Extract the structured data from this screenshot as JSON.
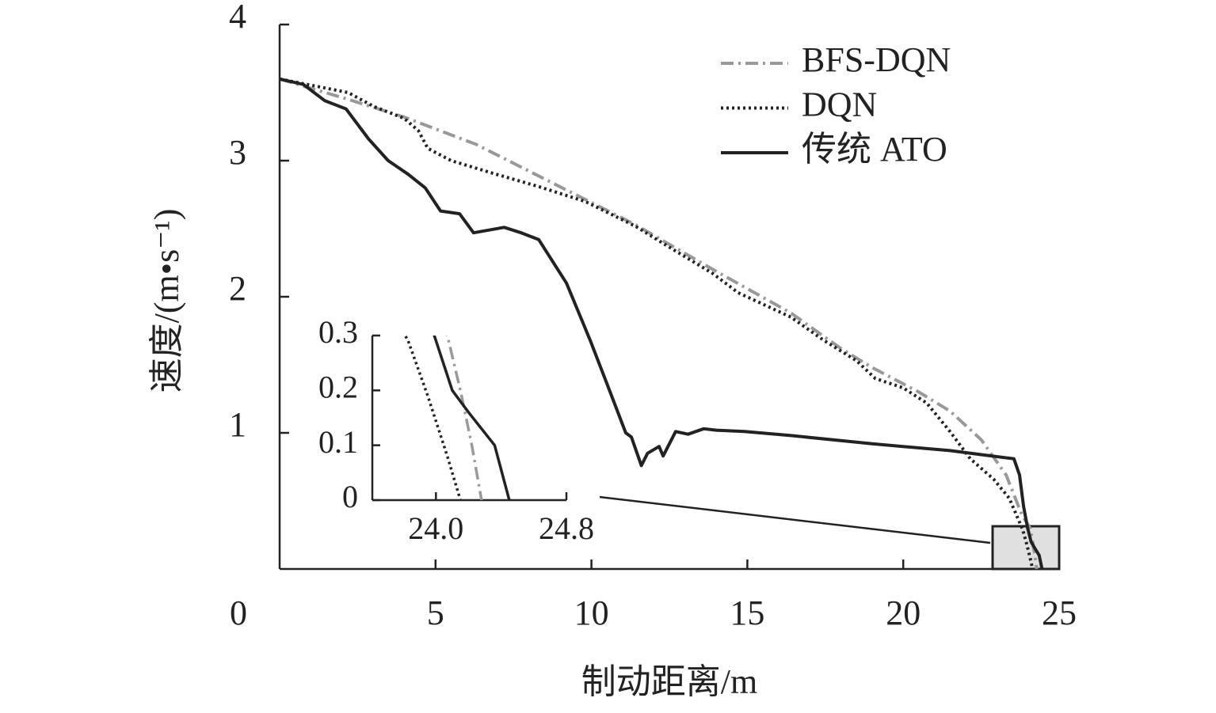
{
  "chart_data": {
    "type": "line",
    "x_label": "制动距离/m",
    "y_label": "速度/(m•s⁻¹)",
    "xlim": [
      0,
      25
    ],
    "xticks": [
      0,
      5,
      10,
      15,
      20,
      25
    ],
    "ylim": [
      0,
      4
    ],
    "yticks": [
      1,
      2,
      3,
      4
    ],
    "legend": "upper right",
    "series": [
      {
        "name": "BFS-DQN",
        "color": "#999999",
        "dash": "dashdot",
        "x": [
          0,
          2.2,
          4,
          6.3,
          8.8,
          11.4,
          13.9,
          16.4,
          18,
          19,
          20.5,
          21.5,
          22.5,
          23.3,
          23.8,
          24.07,
          24.15,
          24.22,
          24.28
        ],
        "values": [
          3.6,
          3.45,
          3.32,
          3.12,
          2.83,
          2.53,
          2.2,
          1.88,
          1.62,
          1.48,
          1.3,
          1.16,
          0.95,
          0.69,
          0.4,
          0.3,
          0.2,
          0.1,
          0
        ]
      },
      {
        "name": "DQN",
        "color": "#222222",
        "dash": "dotted",
        "x": [
          0,
          2.2,
          3,
          4,
          4.45,
          4.75,
          5.5,
          6.8,
          8.3,
          9.8,
          11.4,
          12.6,
          13.9,
          14.7,
          16.4,
          17.45,
          18.5,
          19.1,
          20,
          20.75,
          21.5,
          22.15,
          22.9,
          23.4,
          23.83,
          23.95,
          24.07,
          24.15
        ],
        "values": [
          3.6,
          3.5,
          3.4,
          3.31,
          3.22,
          3.09,
          3.0,
          2.91,
          2.81,
          2.7,
          2.52,
          2.35,
          2.17,
          2.03,
          1.85,
          1.68,
          1.53,
          1.4,
          1.33,
          1.22,
          1.01,
          0.81,
          0.66,
          0.52,
          0.29,
          0.19,
          0.08,
          0
        ]
      },
      {
        "name": "传统 ATO",
        "color": "#222222",
        "dash": "solid",
        "x": [
          0,
          0.76,
          1.45,
          2.13,
          2.85,
          3.48,
          4.12,
          4.67,
          5.16,
          5.77,
          6.22,
          7.2,
          7.75,
          8.31,
          9.2,
          9.96,
          10.6,
          11.1,
          11.28,
          11.6,
          11.8,
          12.17,
          12.3,
          12.7,
          13.1,
          13.6,
          14.0,
          14.9,
          16.4,
          19,
          21.5,
          22.5,
          23.55,
          23.73,
          23.86,
          23.99,
          24.1,
          24.2,
          24.36,
          24.45
        ],
        "values": [
          3.6,
          3.56,
          3.44,
          3.38,
          3.16,
          3.0,
          2.9,
          2.8,
          2.63,
          2.61,
          2.47,
          2.51,
          2.47,
          2.42,
          2.1,
          1.68,
          1.3,
          1.0,
          0.97,
          0.76,
          0.85,
          0.9,
          0.83,
          1.01,
          0.99,
          1.03,
          1.02,
          1.01,
          0.98,
          0.92,
          0.87,
          0.84,
          0.81,
          0.69,
          0.46,
          0.3,
          0.2,
          0.16,
          0.1,
          0
        ]
      }
    ],
    "inset": {
      "xlim": [
        23.61,
        24.8
      ],
      "xticks": [
        {
          "value": 24,
          "label": "24.0"
        },
        24.8
      ],
      "ylim": [
        0,
        0.3
      ],
      "yticks": [
        0,
        0.1,
        0.2,
        0.3
      ]
    }
  }
}
